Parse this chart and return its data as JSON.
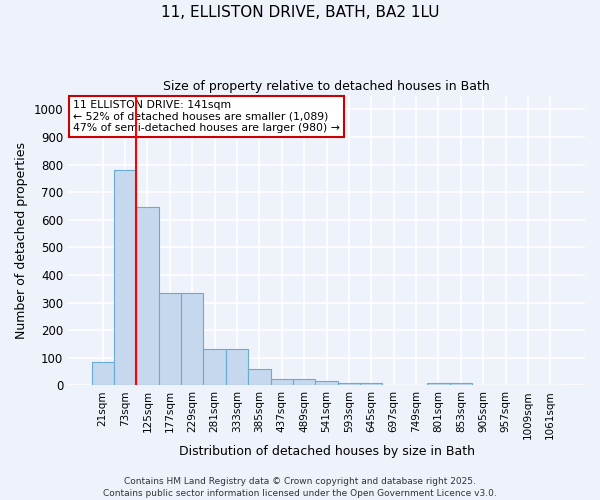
{
  "title_line1": "11, ELLISTON DRIVE, BATH, BA2 1LU",
  "title_line2": "Size of property relative to detached houses in Bath",
  "xlabel": "Distribution of detached houses by size in Bath",
  "ylabel": "Number of detached properties",
  "bin_labels": [
    "21sqm",
    "73sqm",
    "125sqm",
    "177sqm",
    "229sqm",
    "281sqm",
    "333sqm",
    "385sqm",
    "437sqm",
    "489sqm",
    "541sqm",
    "593sqm",
    "645sqm",
    "697sqm",
    "749sqm",
    "801sqm",
    "853sqm",
    "905sqm",
    "957sqm",
    "1009sqm",
    "1061sqm"
  ],
  "bar_heights": [
    85,
    780,
    648,
    335,
    335,
    133,
    133,
    60,
    22,
    22,
    15,
    10,
    10,
    0,
    0,
    10,
    10,
    0,
    0,
    0,
    0
  ],
  "bar_color": "#c5d8ed",
  "bar_edge_color": "#6aabd2",
  "background_color": "#eef2fb",
  "grid_color": "#ffffff",
  "red_line_x": 1.5,
  "annotation_text": "11 ELLISTON DRIVE: 141sqm\n← 52% of detached houses are smaller (1,089)\n47% of semi-detached houses are larger (980) →",
  "annotation_box_color": "#ffffff",
  "annotation_box_edge": "#cc0000",
  "ylim": [
    0,
    1050
  ],
  "yticks": [
    0,
    100,
    200,
    300,
    400,
    500,
    600,
    700,
    800,
    900,
    1000
  ],
  "footer_line1": "Contains HM Land Registry data © Crown copyright and database right 2025.",
  "footer_line2": "Contains public sector information licensed under the Open Government Licence v3.0."
}
